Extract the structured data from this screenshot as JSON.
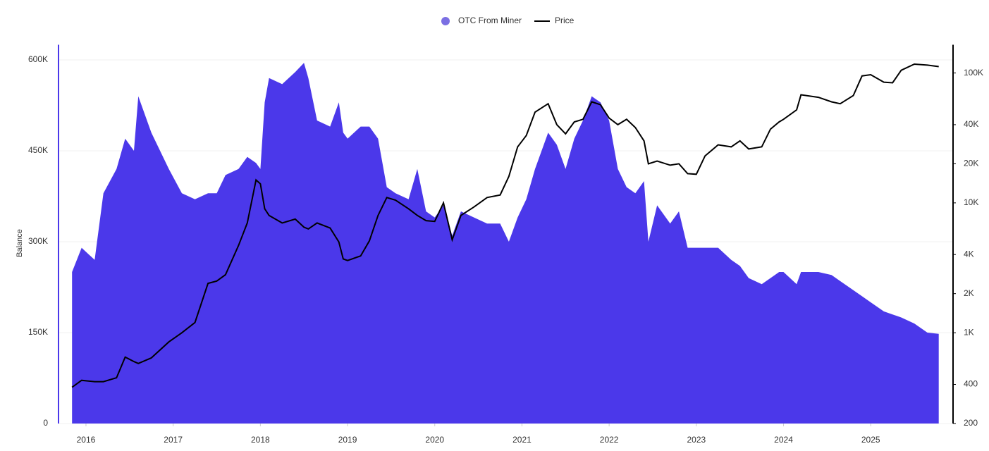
{
  "chart_data": {
    "type": "area-line",
    "y_label": "Balance",
    "x": [
      2015.84,
      2015.95,
      2016.1,
      2016.2,
      2016.35,
      2016.45,
      2016.55,
      2016.6,
      2016.75,
      2016.95,
      2017.1,
      2017.25,
      2017.4,
      2017.5,
      2017.6,
      2017.75,
      2017.85,
      2017.95,
      2018.0,
      2018.05,
      2018.1,
      2018.25,
      2018.4,
      2018.5,
      2018.55,
      2018.65,
      2018.8,
      2018.9,
      2018.95,
      2019.0,
      2019.15,
      2019.25,
      2019.35,
      2019.45,
      2019.55,
      2019.7,
      2019.8,
      2019.9,
      2020.0,
      2020.1,
      2020.2,
      2020.3,
      2020.45,
      2020.6,
      2020.75,
      2020.85,
      2020.95,
      2021.05,
      2021.15,
      2021.3,
      2021.4,
      2021.5,
      2021.6,
      2021.7,
      2021.8,
      2021.9,
      2022.0,
      2022.1,
      2022.2,
      2022.3,
      2022.4,
      2022.45,
      2022.55,
      2022.7,
      2022.8,
      2022.9,
      2023.0,
      2023.1,
      2023.25,
      2023.4,
      2023.5,
      2023.6,
      2023.75,
      2023.85,
      2023.95,
      2024.0,
      2024.15,
      2024.2,
      2024.4,
      2024.55,
      2024.65,
      2024.8,
      2024.9,
      2025.0,
      2025.15,
      2025.25,
      2025.35,
      2025.5,
      2025.65,
      2025.78
    ],
    "series": [
      {
        "name": "OTC From Miner",
        "color": "#4b38ea",
        "legend_color": "#7b6fe3",
        "axis": "y",
        "values": [
          250000,
          290000,
          270000,
          380000,
          420000,
          470000,
          450000,
          540000,
          480000,
          420000,
          380000,
          370000,
          380000,
          380000,
          410000,
          420000,
          440000,
          430000,
          420000,
          530000,
          570000,
          560000,
          580000,
          595000,
          570000,
          500000,
          490000,
          530000,
          480000,
          470000,
          490000,
          490000,
          470000,
          390000,
          380000,
          370000,
          420000,
          350000,
          340000,
          360000,
          310000,
          350000,
          340000,
          330000,
          330000,
          300000,
          340000,
          370000,
          420000,
          480000,
          460000,
          420000,
          470000,
          500000,
          540000,
          530000,
          500000,
          420000,
          390000,
          380000,
          400000,
          300000,
          360000,
          330000,
          350000,
          290000,
          290000,
          290000,
          290000,
          270000,
          260000,
          240000,
          230000,
          240000,
          250000,
          250000,
          230000,
          250000,
          250000,
          245000,
          235000,
          220000,
          210000,
          200000,
          185000,
          180000,
          175000,
          165000,
          150000,
          148000
        ]
      },
      {
        "name": "Price",
        "color": "#000000",
        "axis": "y2",
        "values": [
          380,
          430,
          420,
          420,
          450,
          650,
          600,
          580,
          640,
          850,
          1000,
          1200,
          2400,
          2500,
          2800,
          4700,
          7000,
          15000,
          14000,
          9000,
          8000,
          7000,
          7500,
          6500,
          6300,
          7000,
          6400,
          5000,
          3700,
          3600,
          3900,
          5100,
          8000,
          11000,
          10500,
          9000,
          8000,
          7300,
          7200,
          10000,
          5200,
          8000,
          9300,
          11000,
          11500,
          16000,
          27000,
          33000,
          50000,
          58000,
          40000,
          34000,
          42000,
          44000,
          60000,
          57000,
          45000,
          40000,
          44000,
          38000,
          30000,
          20000,
          21000,
          19500,
          20000,
          16800,
          16600,
          23000,
          28000,
          27000,
          30000,
          26000,
          27000,
          37000,
          42000,
          44000,
          52000,
          68000,
          65000,
          60000,
          58000,
          67000,
          95000,
          97000,
          85000,
          84000,
          105000,
          117000,
          115000,
          112000
        ]
      }
    ],
    "xlim": [
      2015.685,
      2025.944
    ],
    "xticks": [
      2016,
      2017,
      2018,
      2019,
      2020,
      2021,
      2022,
      2023,
      2024,
      2025
    ],
    "ylim": [
      0,
      625000
    ],
    "yticks": [
      0,
      {
        "value": 150000,
        "label": "150K"
      },
      {
        "value": 300000,
        "label": "300K"
      },
      {
        "value": 450000,
        "label": "450K"
      },
      {
        "value": 600000,
        "label": "600K"
      }
    ],
    "y2lim": [
      200,
      165000
    ],
    "y2_log": true,
    "y2ticks": [
      200,
      400,
      {
        "value": 1000,
        "label": "1K"
      },
      {
        "value": 2000,
        "label": "2K"
      },
      {
        "value": 4000,
        "label": "4K"
      },
      {
        "value": 10000,
        "label": "10K"
      },
      {
        "value": 20000,
        "label": "20K"
      },
      {
        "value": 40000,
        "label": "40K"
      },
      {
        "value": 100000,
        "label": "100K"
      }
    ],
    "grid": true,
    "legend": "top"
  }
}
